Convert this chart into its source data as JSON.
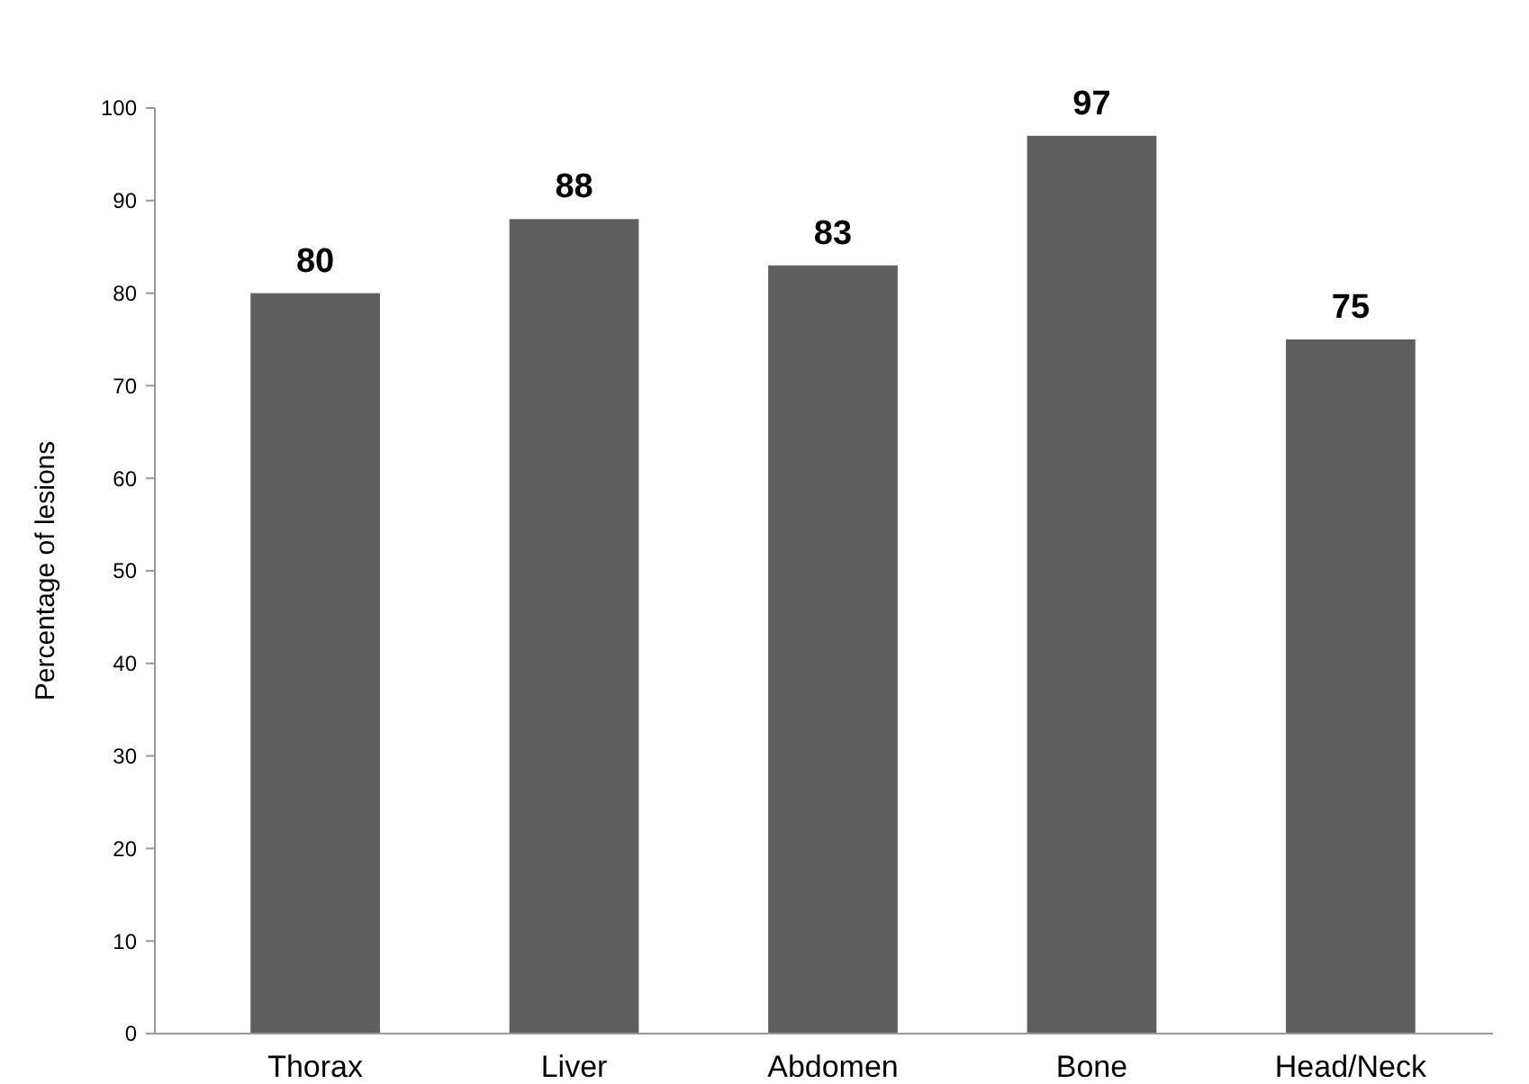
{
  "chart_data": {
    "type": "bar",
    "ylabel": "Percentage of lesions",
    "categories": [
      "Thorax",
      "Liver",
      "Abdomen",
      "Bone",
      "Head/Neck"
    ],
    "values": [
      80,
      88,
      83,
      97,
      75
    ],
    "color": "#5f5f5f",
    "ylim": [
      0,
      100
    ],
    "yticks": [
      0,
      10,
      20,
      30,
      40,
      50,
      60,
      70,
      80,
      90,
      100
    ],
    "data_labels": true,
    "grid": false
  }
}
